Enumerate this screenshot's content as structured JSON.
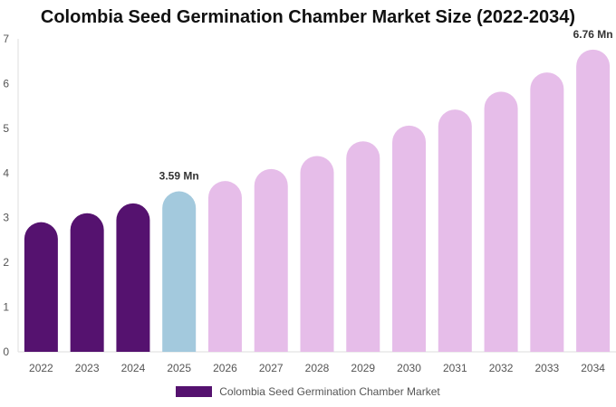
{
  "chart_data": {
    "type": "bar",
    "title": "Colombia Seed Germination Chamber Market Size (2022-2034)",
    "categories": [
      "2022",
      "2023",
      "2024",
      "2025",
      "2026",
      "2027",
      "2028",
      "2029",
      "2030",
      "2031",
      "2032",
      "2033",
      "2034"
    ],
    "series": [
      {
        "name": "Colombia Seed Germination Chamber Market",
        "values": [
          2.9,
          3.1,
          3.32,
          3.59,
          3.82,
          4.09,
          4.38,
          4.71,
          5.06,
          5.42,
          5.82,
          6.25,
          6.76
        ]
      }
    ],
    "bar_colors": [
      "#55126f",
      "#55126f",
      "#55126f",
      "#a3c9dd",
      "#e6bde9",
      "#e6bde9",
      "#e6bde9",
      "#e6bde9",
      "#e6bde9",
      "#e6bde9",
      "#e6bde9",
      "#e6bde9",
      "#e6bde9"
    ],
    "data_labels": [
      {
        "index": 3,
        "text": "3.59 Mn"
      },
      {
        "index": 12,
        "text": "6.76 Mn"
      }
    ],
    "yticks": [
      0,
      1,
      2,
      3,
      4,
      5,
      6,
      7
    ],
    "ylim": [
      0,
      7
    ],
    "xlabel": "",
    "ylabel": "",
    "grid": false,
    "legend_position": "bottom",
    "legend_color": "#55126f"
  }
}
